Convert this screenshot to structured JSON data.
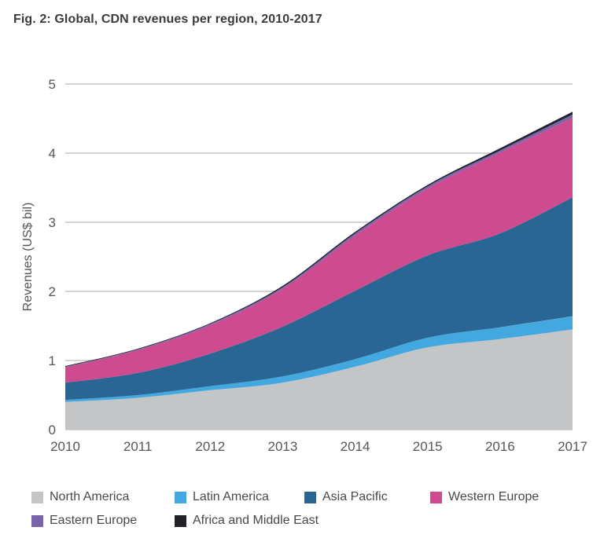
{
  "figure": {
    "title": "Fig. 2: Global, CDN revenues per region, 2010-2017"
  },
  "chart_data": {
    "type": "area",
    "stacked": true,
    "title": "Fig. 2: Global, CDN revenues per region, 2010-2017",
    "xlabel": "",
    "ylabel": "Revenues (US$ bil)",
    "x": [
      2010,
      2011,
      2012,
      2013,
      2014,
      2015,
      2016,
      2017
    ],
    "series": [
      {
        "name": "North America",
        "color": "#c3c5c7",
        "values": [
          0.4,
          0.46,
          0.57,
          0.68,
          0.91,
          1.19,
          1.31,
          1.45
        ]
      },
      {
        "name": "Latin America",
        "color": "#44a8e0",
        "values": [
          0.03,
          0.04,
          0.06,
          0.09,
          0.11,
          0.14,
          0.17,
          0.19
        ]
      },
      {
        "name": "Asia Pacific",
        "color": "#2a6694",
        "values": [
          0.25,
          0.32,
          0.47,
          0.72,
          0.99,
          1.19,
          1.36,
          1.72
        ]
      },
      {
        "name": "Western Europe",
        "color": "#cf4b90",
        "values": [
          0.22,
          0.33,
          0.41,
          0.55,
          0.8,
          0.97,
          1.17,
          1.15
        ]
      },
      {
        "name": "Eastern Europe",
        "color": "#7765ab",
        "values": [
          0.01,
          0.01,
          0.02,
          0.02,
          0.03,
          0.03,
          0.03,
          0.05
        ]
      },
      {
        "name": "Africa and Middle East",
        "color": "#23202b",
        "values": [
          0.01,
          0.01,
          0.01,
          0.02,
          0.02,
          0.02,
          0.03,
          0.04
        ]
      }
    ],
    "ylim": [
      0,
      5
    ],
    "yticks": [
      0,
      1,
      2,
      3,
      4,
      5
    ],
    "grid": true,
    "gridline_color": "#b7b9bb",
    "tick_label_color": "#55565a",
    "legend_position": "bottom",
    "legend_rows": [
      [
        0,
        1,
        2,
        3
      ],
      [
        4,
        5
      ]
    ]
  }
}
